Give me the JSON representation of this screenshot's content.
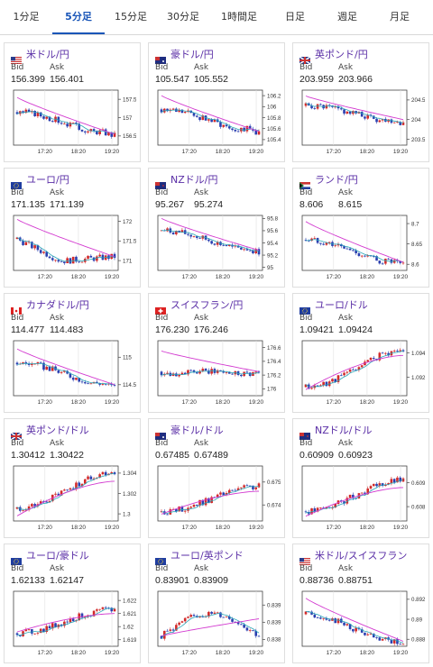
{
  "tabs": [
    {
      "label": "1分足",
      "active": false
    },
    {
      "label": "5分足",
      "active": true
    },
    {
      "label": "15分足",
      "active": false
    },
    {
      "label": "30分足",
      "active": false
    },
    {
      "label": "1時間足",
      "active": false
    },
    {
      "label": "日足",
      "active": false
    },
    {
      "label": "週足",
      "active": false
    },
    {
      "label": "月足",
      "active": false
    }
  ],
  "quote_labels": {
    "bid": "Bid",
    "ask": "Ask"
  },
  "x_ticks": [
    "17:20",
    "18:20",
    "19:20"
  ],
  "colors": {
    "tab_active": "#1a56b8",
    "pair_name": "#5a2ea6",
    "up": "#d22a2a",
    "down": "#2a3fb0",
    "ma_fast": "#2aa7b8",
    "ma_slow": "#d33bd0"
  },
  "cards": [
    {
      "name": "米ドル/円",
      "flag": "us",
      "bid": "156.399",
      "ask": "156.401",
      "y_ticks": [
        "157.5",
        "157",
        "156.5"
      ],
      "ylim": [
        156.25,
        157.75
      ],
      "trend": "down",
      "start": 157.15,
      "end": 156.55,
      "slow_start": 157.55,
      "slow_end": 156.55
    },
    {
      "name": "豪ドル/円",
      "flag": "au",
      "bid": "105.547",
      "ask": "105.552",
      "y_ticks": [
        "106.2",
        "106",
        "105.8",
        "105.6",
        "105.4"
      ],
      "ylim": [
        105.3,
        106.3
      ],
      "trend": "down",
      "start": 105.95,
      "end": 105.55,
      "slow_start": 106.2,
      "slow_end": 105.55
    },
    {
      "name": "英ポンド/円",
      "flag": "gb",
      "bid": "203.959",
      "ask": "203.966",
      "y_ticks": [
        "204.5",
        "204",
        "203.5"
      ],
      "ylim": [
        203.35,
        204.75
      ],
      "trend": "down",
      "start": 204.35,
      "end": 203.95,
      "slow_start": 204.6,
      "slow_end": 204.0
    },
    {
      "name": "ユーロ/円",
      "flag": "eu",
      "bid": "171.135",
      "ask": "171.139",
      "y_ticks": [
        "172",
        "171.5",
        "171"
      ],
      "ylim": [
        170.75,
        172.15
      ],
      "trend": "vdown",
      "start": 171.55,
      "end": 171.1,
      "slow_start": 172.05,
      "slow_end": 171.1
    },
    {
      "name": "NZドル/円",
      "flag": "nz",
      "bid": "95.267",
      "ask": "95.274",
      "y_ticks": [
        "95.8",
        "95.6",
        "95.4",
        "95.2",
        "95"
      ],
      "ylim": [
        94.95,
        95.85
      ],
      "trend": "down",
      "start": 95.6,
      "end": 95.27,
      "slow_start": 95.8,
      "slow_end": 95.28
    },
    {
      "name": "ランド/円",
      "flag": "za",
      "bid": "8.606",
      "ask": "8.615",
      "y_ticks": [
        "8.7",
        "8.65",
        "8.6"
      ],
      "ylim": [
        8.585,
        8.72
      ],
      "trend": "down",
      "start": 8.66,
      "end": 8.6,
      "slow_start": 8.705,
      "slow_end": 8.605
    },
    {
      "name": "カナダドル/円",
      "flag": "ca",
      "bid": "114.477",
      "ask": "114.483",
      "y_ticks": [
        "115",
        "114.5"
      ],
      "ylim": [
        114.3,
        115.3
      ],
      "trend": "down",
      "start": 114.9,
      "end": 114.48,
      "slow_start": 115.15,
      "slow_end": 114.5
    },
    {
      "name": "スイスフラン/円",
      "flag": "ch",
      "bid": "176.230",
      "ask": "176.246",
      "y_ticks": [
        "176.6",
        "176.4",
        "176.2",
        "176"
      ],
      "ylim": [
        175.9,
        176.7
      ],
      "trend": "flat",
      "start": 176.25,
      "end": 176.23,
      "slow_start": 176.55,
      "slow_end": 176.25
    },
    {
      "name": "ユーロ/ドル",
      "flag": "eu",
      "bid": "1.09421",
      "ask": "1.09424",
      "y_ticks": [
        "1.094",
        "1.092"
      ],
      "ylim": [
        1.0905,
        1.095
      ],
      "trend": "up",
      "start": 1.0912,
      "end": 1.0942,
      "slow_start": 1.091,
      "slow_end": 1.0938
    },
    {
      "name": "英ポンド/ドル",
      "flag": "gb",
      "bid": "1.30412",
      "ask": "1.30422",
      "y_ticks": [
        "1.304",
        "1.302",
        "1.3"
      ],
      "ylim": [
        1.2993,
        1.3047
      ],
      "trend": "up",
      "start": 1.3005,
      "end": 1.3041,
      "slow_start": 1.2998,
      "slow_end": 1.3032
    },
    {
      "name": "豪ドル/ドル",
      "flag": "au",
      "bid": "0.67485",
      "ask": "0.67489",
      "y_ticks": [
        "0.675",
        "0.674"
      ],
      "ylim": [
        0.6733,
        0.6757
      ],
      "trend": "up",
      "start": 0.6737,
      "end": 0.6748,
      "slow_start": 0.6736,
      "slow_end": 0.6746
    },
    {
      "name": "NZドル/ドル",
      "flag": "nz",
      "bid": "0.60909",
      "ask": "0.60923",
      "y_ticks": [
        "0.609",
        "0.608"
      ],
      "ylim": [
        0.6074,
        0.6097
      ],
      "trend": "up",
      "start": 0.6078,
      "end": 0.6091,
      "slow_start": 0.6076,
      "slow_end": 0.6088
    },
    {
      "name": "ユーロ/豪ドル",
      "flag": "eu",
      "bid": "1.62133",
      "ask": "1.62147",
      "y_ticks": [
        "1.622",
        "1.621",
        "1.62",
        "1.619"
      ],
      "ylim": [
        1.6185,
        1.6227
      ],
      "trend": "up",
      "start": 1.6195,
      "end": 1.6213,
      "slow_start": 1.6196,
      "slow_end": 1.621
    },
    {
      "name": "ユーロ/英ポンド",
      "flag": "eu",
      "bid": "0.83901",
      "ask": "0.83909",
      "y_ticks": [
        "0.8395",
        "0.839",
        "0.8385"
      ],
      "ylim": [
        0.8383,
        0.8399
      ],
      "trend": "hump",
      "start": 0.8386,
      "end": 0.839,
      "slow_start": 0.8386,
      "slow_end": 0.8391
    },
    {
      "name": "米ドル/スイスフラン",
      "flag": "us",
      "bid": "0.88736",
      "ask": "0.88751",
      "y_ticks": [
        "0.892",
        "0.89",
        "0.888"
      ],
      "ylim": [
        0.8873,
        0.8928
      ],
      "trend": "down",
      "start": 0.8905,
      "end": 0.8875,
      "slow_start": 0.8921,
      "slow_end": 0.8878
    }
  ]
}
